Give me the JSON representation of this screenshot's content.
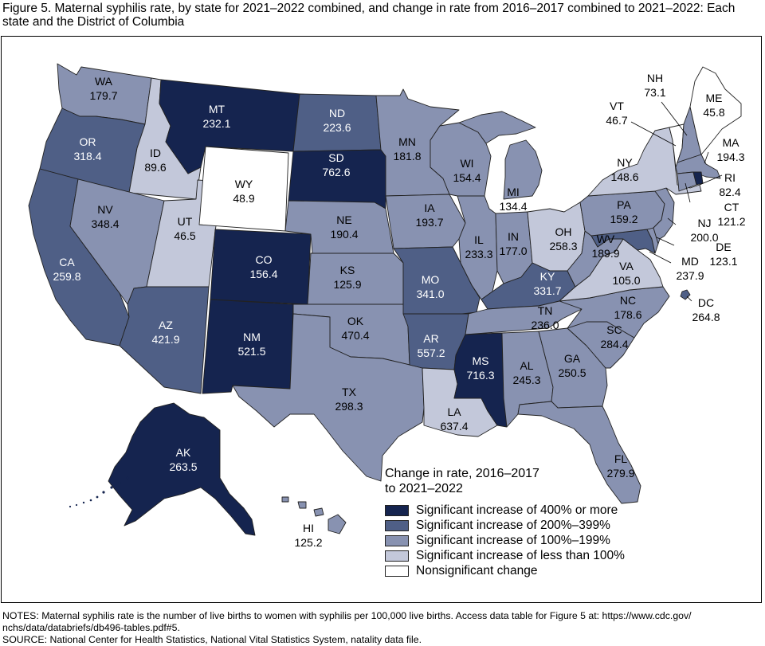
{
  "title": "Figure 5. Maternal syphilis rate, by state for 2021–2022 combined, and change in rate from 2016–2017 combined to 2021–2022: Each state and the District of Columbia",
  "colors": {
    "c400": "#15244f",
    "c200": "#4f5f86",
    "c100": "#8892b1",
    "clt100": "#c3c8da",
    "cns": "#ffffff",
    "border": "#222222"
  },
  "legend": {
    "title_line1": "Change in rate, 2016–2017",
    "title_line2": "to 2021–2022",
    "items": [
      {
        "label": "Significant increase of 400% or more",
        "category": "c400"
      },
      {
        "label": "Significant increase of 200%–399%",
        "category": "c200"
      },
      {
        "label": "Significant increase of 100%–199%",
        "category": "c100"
      },
      {
        "label": "Significant increase of less than 100%",
        "category": "clt100"
      },
      {
        "label": "Nonsignificant change",
        "category": "cns"
      }
    ]
  },
  "states": [
    {
      "abbr": "WA",
      "rate": "179.7",
      "category": "c100"
    },
    {
      "abbr": "OR",
      "rate": "318.4",
      "category": "c200"
    },
    {
      "abbr": "CA",
      "rate": "259.8",
      "category": "c200"
    },
    {
      "abbr": "ID",
      "rate": "89.6",
      "category": "clt100"
    },
    {
      "abbr": "NV",
      "rate": "348.4",
      "category": "c100"
    },
    {
      "abbr": "MT",
      "rate": "232.1",
      "category": "c400"
    },
    {
      "abbr": "WY",
      "rate": "48.9",
      "category": "cns"
    },
    {
      "abbr": "UT",
      "rate": "46.5",
      "category": "clt100"
    },
    {
      "abbr": "AZ",
      "rate": "421.9",
      "category": "c200"
    },
    {
      "abbr": "CO",
      "rate": "156.4",
      "category": "c400"
    },
    {
      "abbr": "NM",
      "rate": "521.5",
      "category": "c400"
    },
    {
      "abbr": "ND",
      "rate": "223.6",
      "category": "c200"
    },
    {
      "abbr": "SD",
      "rate": "762.6",
      "category": "c400"
    },
    {
      "abbr": "NE",
      "rate": "190.4",
      "category": "c100"
    },
    {
      "abbr": "KS",
      "rate": "125.9",
      "category": "c100"
    },
    {
      "abbr": "OK",
      "rate": "470.4",
      "category": "c100"
    },
    {
      "abbr": "TX",
      "rate": "298.3",
      "category": "c100"
    },
    {
      "abbr": "MN",
      "rate": "181.8",
      "category": "c100"
    },
    {
      "abbr": "IA",
      "rate": "193.7",
      "category": "c100"
    },
    {
      "abbr": "MO",
      "rate": "341.0",
      "category": "c200"
    },
    {
      "abbr": "AR",
      "rate": "557.2",
      "category": "c200"
    },
    {
      "abbr": "LA",
      "rate": "637.4",
      "category": "clt100"
    },
    {
      "abbr": "WI",
      "rate": "154.4",
      "category": "c100"
    },
    {
      "abbr": "IL",
      "rate": "233.3",
      "category": "c100"
    },
    {
      "abbr": "MI",
      "rate": "134.4",
      "category": "c100"
    },
    {
      "abbr": "IN",
      "rate": "177.0",
      "category": "c100"
    },
    {
      "abbr": "OH",
      "rate": "258.3",
      "category": "clt100"
    },
    {
      "abbr": "KY",
      "rate": "331.7",
      "category": "c200"
    },
    {
      "abbr": "TN",
      "rate": "236.0",
      "category": "c100"
    },
    {
      "abbr": "MS",
      "rate": "716.3",
      "category": "c400"
    },
    {
      "abbr": "AL",
      "rate": "245.3",
      "category": "c100"
    },
    {
      "abbr": "GA",
      "rate": "250.5",
      "category": "c100"
    },
    {
      "abbr": "FL",
      "rate": "279.9",
      "category": "c100"
    },
    {
      "abbr": "SC",
      "rate": "284.4",
      "category": "c100"
    },
    {
      "abbr": "NC",
      "rate": "178.6",
      "category": "c100"
    },
    {
      "abbr": "VA",
      "rate": "105.0",
      "category": "clt100"
    },
    {
      "abbr": "WV",
      "rate": "189.9",
      "category": "c100"
    },
    {
      "abbr": "PA",
      "rate": "159.2",
      "category": "c100"
    },
    {
      "abbr": "NY",
      "rate": "148.6",
      "category": "clt100"
    },
    {
      "abbr": "VT",
      "rate": "46.7",
      "category": "cns"
    },
    {
      "abbr": "NH",
      "rate": "73.1",
      "category": "c100"
    },
    {
      "abbr": "ME",
      "rate": "45.8",
      "category": "cns"
    },
    {
      "abbr": "MA",
      "rate": "194.3",
      "category": "c100"
    },
    {
      "abbr": "RI",
      "rate": "82.4",
      "category": "c400"
    },
    {
      "abbr": "CT",
      "rate": "121.2",
      "category": "c100"
    },
    {
      "abbr": "NJ",
      "rate": "200.0",
      "category": "c100"
    },
    {
      "abbr": "DE",
      "rate": "123.1",
      "category": "c100"
    },
    {
      "abbr": "MD",
      "rate": "237.9",
      "category": "c200"
    },
    {
      "abbr": "DC",
      "rate": "264.8",
      "category": "c200"
    },
    {
      "abbr": "AK",
      "rate": "263.5",
      "category": "c400"
    },
    {
      "abbr": "HI",
      "rate": "125.2",
      "category": "c100"
    }
  ],
  "notes_line1": "NOTES: Maternal syphilis rate is the number of live births to women with syphilis per 100,000 live births. Access data table for Figure 5 at: https://www.cdc.gov/",
  "notes_line2": "nchs/data/databriefs/db496-tables.pdf#5.",
  "source": "SOURCE: National Center for Health Statistics, National Vital Statistics System, natality data file."
}
